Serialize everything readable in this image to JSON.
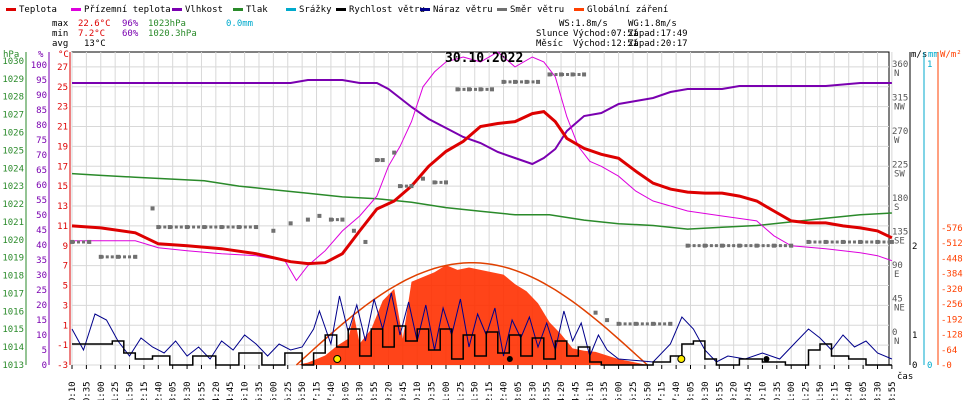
{
  "legend": [
    {
      "label": "Teplota",
      "color": "#dd0000"
    },
    {
      "label": "Přízemní teplota",
      "color": "#dd00dd"
    },
    {
      "label": "Vlhkost",
      "color": "#7a00b0"
    },
    {
      "label": "Tlak",
      "color": "#2a8a2a"
    },
    {
      "label": "Srážky",
      "color": "#00aacc"
    },
    {
      "label": "Rychlost větru",
      "color": "#000000"
    },
    {
      "label": "Náraz větru",
      "color": "#00008b"
    },
    {
      "label": "Směr větru",
      "color": "#707070"
    },
    {
      "label": "Globální záření",
      "color": "#ff4000"
    }
  ],
  "stats": {
    "max_label": "max",
    "max_temp": "22.6°C",
    "max_hum": "96%",
    "max_press": "1023hPa",
    "rain": "0.0mm",
    "min_label": "min",
    "min_temp": "7.2°C",
    "min_hum": "60%",
    "min_press": "1020.3hPa",
    "avg_label": "avg",
    "avg_temp": "13°C"
  },
  "sun": {
    "wind": "WS:1.8m/s",
    "gust": "WG:1.8m/s",
    "sun_label": "Slunce",
    "sun_rise": "Východ:07:51",
    "sun_set": "Západ:17:49",
    "moon_label": "Měsíc",
    "moon_rise": "Východ:12:51",
    "moon_set": "Západ:20:17"
  },
  "date": "30.10.2022",
  "axis_units": {
    "hpa": "hPa",
    "pct": "%",
    "temp": "°C",
    "ms": "m/s",
    "mm": "mm",
    "wm2": "W/m²",
    "time": "čas"
  },
  "chart_data": {
    "type": "line",
    "x_start_minutes": 10,
    "x_end_minutes": 1430,
    "x_ticks": [
      "00:10",
      "00:35",
      "01:00",
      "01:25",
      "01:50",
      "02:15",
      "02:40",
      "03:05",
      "03:30",
      "03:55",
      "04:20",
      "04:45",
      "05:10",
      "05:35",
      "06:00",
      "06:25",
      "06:50",
      "07:15",
      "07:40",
      "08:05",
      "08:30",
      "08:55",
      "09:20",
      "09:45",
      "10:10",
      "10:35",
      "11:00",
      "11:25",
      "11:50",
      "12:15",
      "12:40",
      "13:05",
      "13:30",
      "13:55",
      "14:20",
      "14:45",
      "15:10",
      "15:35",
      "16:00",
      "16:25",
      "16:50",
      "17:15",
      "17:40",
      "18:05",
      "18:30",
      "18:55",
      "19:20",
      "19:45",
      "20:10",
      "20:35",
      "21:00",
      "21:25",
      "21:50",
      "22:15",
      "22:40",
      "23:05",
      "23:30",
      "23:55"
    ],
    "temp_ticks": [
      "-3",
      "-1",
      "1",
      "3",
      "5",
      "7",
      "9",
      "11",
      "13",
      "15",
      "17",
      "19",
      "21",
      "23",
      "25",
      "27"
    ],
    "pct_ticks": [
      "0",
      "5",
      "10",
      "15",
      "20",
      "25",
      "30",
      "35",
      "40",
      "45",
      "50",
      "55",
      "60",
      "65",
      "70",
      "75",
      "80",
      "85",
      "90",
      "95",
      "100"
    ],
    "hpa_ticks": [
      "1013",
      "1014",
      "1015",
      "1016",
      "1017",
      "1018",
      "1019",
      "1020",
      "1021",
      "1022",
      "1023",
      "1024",
      "1025",
      "1026",
      "1027",
      "1028",
      "1029",
      "1030"
    ],
    "dir_ticks": [
      "0",
      "45",
      "90",
      "135",
      "180",
      "225",
      "270",
      "315",
      "360"
    ],
    "dir_labels": [
      "N",
      "NE",
      "E",
      "SE",
      "S",
      "SW",
      "W",
      "NW",
      "N"
    ],
    "ms_ticks": [
      "0",
      "1",
      "2"
    ],
    "mm_ticks": [
      "0",
      "1"
    ],
    "rad_ticks": [
      "0",
      "64",
      "128",
      "192",
      "256",
      "320",
      "384",
      "448",
      "512",
      "576"
    ],
    "temp_range": [
      -3,
      28.5
    ],
    "series": [
      {
        "name": "Teplota",
        "color": "#dd0000",
        "x": [
          "00:10",
          "01:00",
          "02:00",
          "02:40",
          "03:30",
          "04:30",
          "05:30",
          "06:30",
          "07:00",
          "07:30",
          "08:00",
          "08:30",
          "09:00",
          "09:30",
          "10:00",
          "10:30",
          "11:00",
          "11:30",
          "12:00",
          "12:30",
          "13:00",
          "13:30",
          "13:50",
          "14:10",
          "14:30",
          "15:00",
          "15:30",
          "16:00",
          "16:30",
          "17:00",
          "17:30",
          "18:00",
          "18:30",
          "19:00",
          "19:30",
          "20:00",
          "20:30",
          "21:00",
          "21:30",
          "22:00",
          "22:30",
          "23:00",
          "23:30",
          "23:55"
        ],
        "values": [
          11,
          10.8,
          10.3,
          9.2,
          9,
          8.7,
          8.2,
          7.4,
          7.2,
          7.3,
          8.2,
          10.5,
          12.7,
          13.5,
          15,
          17,
          18.5,
          19.5,
          21,
          21.3,
          21.5,
          22.3,
          22.5,
          21.5,
          19.8,
          18.8,
          18.2,
          17.8,
          16.5,
          15.3,
          14.7,
          14.4,
          14.3,
          14.3,
          14,
          13.5,
          12.5,
          11.5,
          11.3,
          11.3,
          11,
          10.8,
          10.5,
          9.8
        ]
      },
      {
        "name": "Přízemní teplota",
        "color": "#dd00dd",
        "x": [
          "00:10",
          "01:00",
          "02:00",
          "02:40",
          "03:30",
          "04:30",
          "05:30",
          "06:20",
          "06:40",
          "07:00",
          "07:30",
          "08:00",
          "08:30",
          "09:00",
          "09:20",
          "09:40",
          "10:00",
          "10:20",
          "10:40",
          "11:00",
          "11:30",
          "12:00",
          "12:30",
          "13:00",
          "13:30",
          "13:50",
          "14:10",
          "14:30",
          "14:50",
          "15:10",
          "15:30",
          "16:00",
          "16:30",
          "17:00",
          "17:30",
          "18:00",
          "19:00",
          "20:00",
          "20:30",
          "21:00",
          "22:00",
          "22:30",
          "23:00",
          "23:30",
          "23:55"
        ],
        "values": [
          9.5,
          9.5,
          9.5,
          8.8,
          8.5,
          8.2,
          8,
          7.5,
          5.5,
          7,
          8.5,
          10.5,
          12,
          14,
          17,
          19,
          21.5,
          25,
          26.5,
          27.5,
          28,
          27.5,
          28.5,
          27,
          28,
          27.5,
          26,
          22,
          19,
          17.5,
          17,
          16,
          14.5,
          13.5,
          13,
          12.5,
          12,
          11.5,
          10,
          9,
          8.7,
          8.5,
          8.3,
          8,
          7.5
        ]
      },
      {
        "name": "Vlhkost",
        "color": "#7a00b0",
        "x": [
          "00:10",
          "01:00",
          "02:00",
          "03:00",
          "04:00",
          "05:00",
          "06:00",
          "06:30",
          "07:00",
          "08:00",
          "08:30",
          "09:00",
          "09:20",
          "09:40",
          "10:00",
          "10:30",
          "11:00",
          "11:30",
          "12:00",
          "12:30",
          "13:00",
          "13:30",
          "13:50",
          "14:10",
          "14:30",
          "15:00",
          "15:30",
          "16:00",
          "16:30",
          "17:00",
          "17:30",
          "18:00",
          "18:30",
          "19:00",
          "19:30",
          "20:00",
          "21:00",
          "22:00",
          "23:00",
          "23:55"
        ],
        "values": [
          94,
          94,
          94,
          94,
          94,
          94,
          94,
          94,
          95,
          95,
          94,
          94,
          92,
          89,
          86,
          82,
          79,
          76,
          74,
          71,
          69,
          67,
          69,
          72,
          78,
          83,
          84,
          87,
          88,
          89,
          91,
          92,
          92,
          92,
          93,
          93,
          93,
          93,
          94,
          94
        ]
      },
      {
        "name": "Tlak",
        "color": "#2a8a2a",
        "x": [
          "00:10",
          "01:00",
          "02:00",
          "03:00",
          "04:00",
          "05:00",
          "06:00",
          "07:00",
          "08:00",
          "09:00",
          "10:00",
          "11:00",
          "12:00",
          "13:00",
          "14:00",
          "15:00",
          "16:00",
          "17:00",
          "18:00",
          "19:00",
          "20:00",
          "21:00",
          "22:00",
          "23:00",
          "23:55"
        ],
        "values": [
          1023.7,
          1023.6,
          1023.5,
          1023.4,
          1023.3,
          1023,
          1022.8,
          1022.6,
          1022.4,
          1022.3,
          1022.1,
          1021.8,
          1021.6,
          1021.4,
          1021.4,
          1021.1,
          1020.9,
          1020.8,
          1020.6,
          1020.7,
          1020.8,
          1021,
          1021.2,
          1021.4,
          1021.5
        ]
      },
      {
        "name": "Globální záření",
        "color": "#ff4000",
        "x": [
          "06:40",
          "07:00",
          "07:30",
          "07:50",
          "08:10",
          "08:20",
          "08:30",
          "08:50",
          "09:10",
          "09:30",
          "09:45",
          "10:00",
          "10:20",
          "10:40",
          "11:00",
          "11:20",
          "11:40",
          "12:00",
          "12:20",
          "12:40",
          "13:00",
          "13:20",
          "13:40",
          "14:00",
          "14:20",
          "14:40",
          "15:00",
          "15:20",
          "15:40",
          "16:00",
          "16:20",
          "16:40",
          "16:50"
        ],
        "values": [
          0,
          10,
          40,
          80,
          110,
          210,
          90,
          150,
          270,
          320,
          110,
          350,
          370,
          390,
          420,
          400,
          410,
          400,
          390,
          380,
          340,
          310,
          260,
          180,
          130,
          70,
          60,
          55,
          40,
          25,
          15,
          5,
          0
        ]
      }
    ],
    "wind_speed": {
      "x": [
        "00:10",
        "00:50",
        "01:20",
        "01:40",
        "02:00",
        "02:30",
        "03:00",
        "03:40",
        "04:20",
        "05:00",
        "05:40",
        "06:20",
        "06:50",
        "07:10",
        "07:30",
        "07:50",
        "08:10",
        "08:30",
        "08:50",
        "09:10",
        "09:30",
        "09:50",
        "10:10",
        "10:30",
        "10:50",
        "11:10",
        "11:30",
        "11:50",
        "12:10",
        "12:30",
        "12:50",
        "13:10",
        "13:30",
        "13:50",
        "14:10",
        "14:30",
        "14:50",
        "15:10",
        "15:30",
        "16:00",
        "17:00",
        "17:30",
        "17:50",
        "18:10",
        "18:30",
        "18:50",
        "19:30",
        "20:10",
        "20:50",
        "21:30",
        "21:50",
        "22:10",
        "22:40",
        "23:10",
        "23:55"
      ],
      "values": [
        0.7,
        0.7,
        0.8,
        0.4,
        0.2,
        0.3,
        0,
        0.3,
        0,
        0.4,
        0,
        0.4,
        0,
        0.4,
        1,
        0.6,
        1.2,
        0.3,
        1.2,
        0.6,
        1.3,
        0.8,
        1.2,
        0.5,
        1.2,
        0.2,
        1,
        0.3,
        1.1,
        0.4,
        1,
        0.3,
        0.9,
        0.2,
        0.8,
        0.3,
        0.6,
        0.1,
        0,
        0,
        0.1,
        0.3,
        0.7,
        0.8,
        0.2,
        0,
        0.2,
        0.1,
        0,
        0.5,
        0.7,
        0.3,
        0.2,
        0,
        0
      ]
    },
    "wind_gust": {
      "x": [
        "00:10",
        "00:30",
        "00:50",
        "01:10",
        "01:30",
        "01:50",
        "02:10",
        "02:30",
        "02:50",
        "03:10",
        "03:30",
        "03:50",
        "04:10",
        "04:30",
        "04:50",
        "05:10",
        "05:30",
        "05:50",
        "06:10",
        "06:30",
        "06:50",
        "07:10",
        "07:20",
        "07:40",
        "07:55",
        "08:10",
        "08:25",
        "08:40",
        "08:55",
        "09:10",
        "09:25",
        "09:40",
        "09:55",
        "10:10",
        "10:25",
        "10:40",
        "10:55",
        "11:10",
        "11:25",
        "11:40",
        "11:55",
        "12:10",
        "12:25",
        "12:40",
        "12:55",
        "13:10",
        "13:25",
        "13:40",
        "13:55",
        "14:10",
        "14:25",
        "14:40",
        "14:55",
        "15:10",
        "15:25",
        "15:40",
        "16:00",
        "17:00",
        "17:30",
        "17:50",
        "18:10",
        "18:30",
        "18:50",
        "19:10",
        "19:40",
        "20:10",
        "20:40",
        "21:10",
        "21:30",
        "21:50",
        "22:10",
        "22:30",
        "22:50",
        "23:10",
        "23:30",
        "23:55"
      ],
      "values": [
        1.2,
        0.5,
        1.7,
        1.5,
        0.8,
        0.3,
        0.9,
        0.6,
        0.4,
        0.8,
        0.3,
        0.6,
        0.2,
        0.8,
        0.5,
        1,
        0.7,
        0.3,
        0.7,
        0.5,
        0.6,
        1.2,
        1.8,
        0.7,
        2.3,
        1.1,
        2,
        0.8,
        2.2,
        1.2,
        2.4,
        1,
        2.1,
        0.8,
        2,
        0.5,
        1.9,
        1,
        2.2,
        0.6,
        1.7,
        1,
        1.9,
        0.3,
        1.5,
        0.9,
        1.6,
        0.6,
        1.4,
        0.5,
        1.8,
        0.8,
        1.4,
        0.3,
        1,
        0.5,
        0.2,
        0.1,
        0.7,
        1.6,
        1.2,
        0.5,
        0.1,
        0.3,
        0.2,
        0.4,
        0.2,
        0.8,
        1.2,
        0.9,
        0.5,
        1,
        0.6,
        0.8,
        0.4,
        0.2
      ]
    },
    "wind_dir": {
      "x": [
        "00:10",
        "00:40",
        "01:00",
        "01:30",
        "02:00",
        "02:30",
        "02:40",
        "03:00",
        "03:30",
        "04:00",
        "04:30",
        "05:00",
        "05:30",
        "06:00",
        "06:30",
        "07:00",
        "07:20",
        "07:40",
        "08:00",
        "08:20",
        "08:40",
        "09:00",
        "09:10",
        "09:30",
        "09:40",
        "10:00",
        "10:20",
        "10:40",
        "11:00",
        "11:20",
        "11:40",
        "12:00",
        "12:20",
        "12:40",
        "13:00",
        "13:20",
        "13:40",
        "14:00",
        "14:20",
        "14:40",
        "15:00",
        "15:20",
        "15:40",
        "16:00",
        "16:30",
        "17:00",
        "17:30",
        "18:00",
        "18:30",
        "19:00",
        "19:30",
        "20:00",
        "20:30",
        "21:00",
        "21:30",
        "22:00",
        "22:30",
        "23:00",
        "23:30",
        "23:55"
      ],
      "values": [
        125,
        125,
        105,
        105,
        105,
        170,
        145,
        145,
        145,
        145,
        145,
        145,
        145,
        140,
        150,
        155,
        160,
        155,
        155,
        140,
        125,
        235,
        235,
        245,
        200,
        200,
        210,
        205,
        205,
        330,
        330,
        330,
        330,
        340,
        340,
        340,
        340,
        350,
        350,
        350,
        350,
        30,
        20,
        15,
        15,
        15,
        15,
        120,
        120,
        120,
        120,
        120,
        120,
        120,
        125,
        125,
        125,
        125,
        125,
        125
      ]
    },
    "sunrise_marker": "07:51",
    "sunset_marker": "17:49",
    "moon_marker": "12:51",
    "moonset_marker": "20:17"
  }
}
